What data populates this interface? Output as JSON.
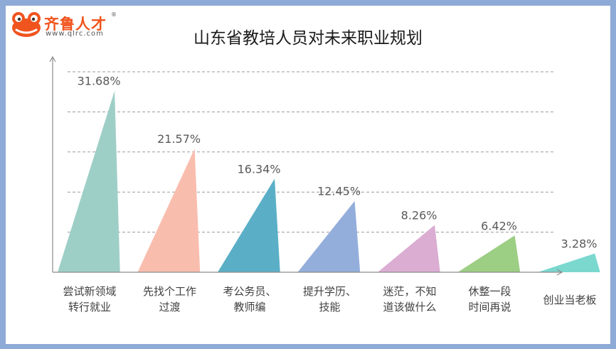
{
  "logo": {
    "name": "齐鲁人才",
    "url": "www.qlrc.com",
    "reg": "®"
  },
  "chart_data": {
    "type": "bar",
    "title": "山东省教培人员对未来职业规划",
    "xlabel": "",
    "ylabel": "",
    "ylim": [
      0,
      35
    ],
    "grid": true,
    "legend": "none",
    "categories": [
      [
        "尝试新领域",
        "转行就业"
      ],
      [
        "先找个工作",
        "过渡"
      ],
      [
        "考公务员、",
        "教师编"
      ],
      [
        "提升学历、",
        "技能"
      ],
      [
        "迷茫，不知",
        "道该做什么"
      ],
      [
        "休整一段",
        "时间再说"
      ],
      [
        "创业当老板"
      ]
    ],
    "values": [
      31.68,
      21.57,
      16.34,
      12.45,
      8.26,
      6.42,
      3.28
    ],
    "labels": [
      "31.68%",
      "21.57%",
      "16.34%",
      "12.45%",
      "8.26%",
      "6.42%",
      "3.28%"
    ],
    "colors": [
      "#9ecfc7",
      "#f9bdae",
      "#5aafc6",
      "#93aedb",
      "#dbadd3",
      "#9cce83",
      "#7ad8cf"
    ]
  }
}
